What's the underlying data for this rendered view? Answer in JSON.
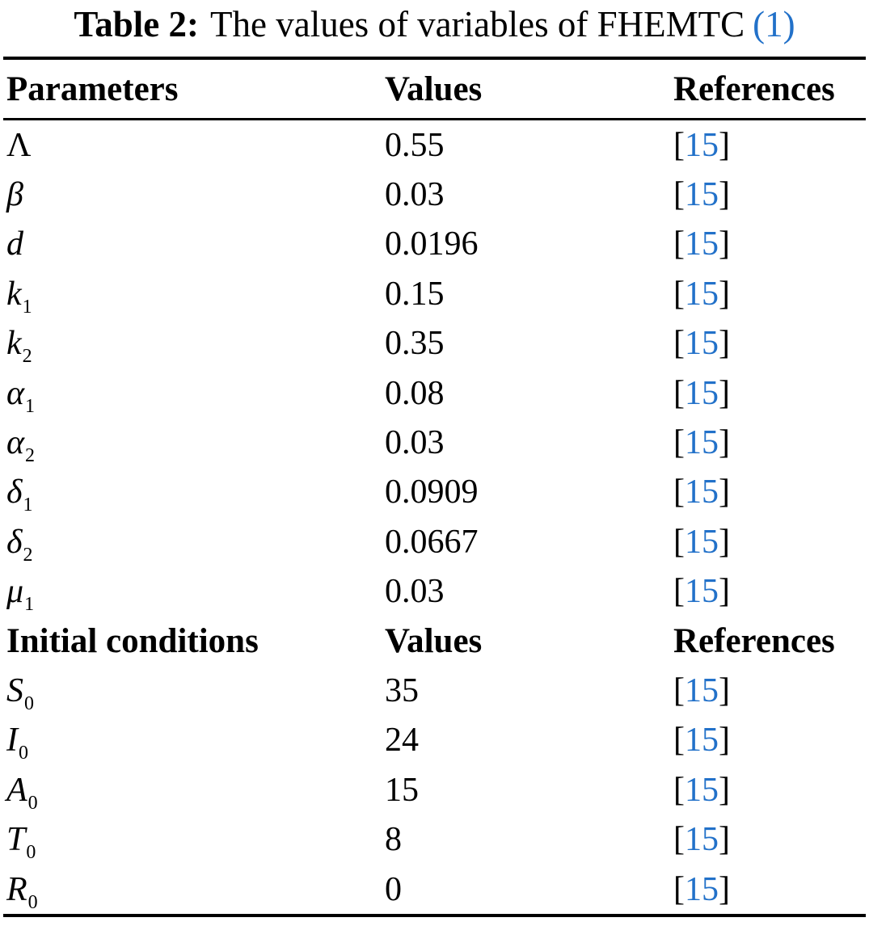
{
  "colors": {
    "link": "#2271c9"
  },
  "caption": {
    "label": "Table 2:",
    "text": "The values of variables of FHEMTC",
    "link": "(1)"
  },
  "table": {
    "headers": {
      "col1": "Parameters",
      "col2": "Values",
      "col3": "References"
    },
    "section2": {
      "col1": "Initial conditions",
      "col2": "Values",
      "col3": "References"
    },
    "ref_bracket_open": "[",
    "ref_bracket_close": "]",
    "parameter_rows": [
      {
        "base": "Λ",
        "sub": "",
        "value": "0.55",
        "ref": "15"
      },
      {
        "base": "β",
        "sub": "",
        "value": "0.03",
        "ref": "15"
      },
      {
        "base": "d",
        "sub": "",
        "value": "0.0196",
        "ref": "15"
      },
      {
        "base": "k",
        "sub": "1",
        "value": "0.15",
        "ref": "15"
      },
      {
        "base": "k",
        "sub": "2",
        "value": "0.35",
        "ref": "15"
      },
      {
        "base": "α",
        "sub": "1",
        "value": "0.08",
        "ref": "15"
      },
      {
        "base": "α",
        "sub": "2",
        "value": "0.03",
        "ref": "15"
      },
      {
        "base": "δ",
        "sub": "1",
        "value": "0.0909",
        "ref": "15"
      },
      {
        "base": "δ",
        "sub": "2",
        "value": "0.0667",
        "ref": "15"
      },
      {
        "base": "μ",
        "sub": "1",
        "value": "0.03",
        "ref": "15"
      }
    ],
    "initial_rows": [
      {
        "base": "S",
        "sub": "0",
        "value": "35",
        "ref": "15"
      },
      {
        "base": "I",
        "sub": "0",
        "value": "24",
        "ref": "15"
      },
      {
        "base": "A",
        "sub": "0",
        "value": "15",
        "ref": "15"
      },
      {
        "base": "T",
        "sub": "0",
        "value": "8",
        "ref": "15"
      },
      {
        "base": "R",
        "sub": "0",
        "value": "0",
        "ref": "15"
      }
    ]
  }
}
